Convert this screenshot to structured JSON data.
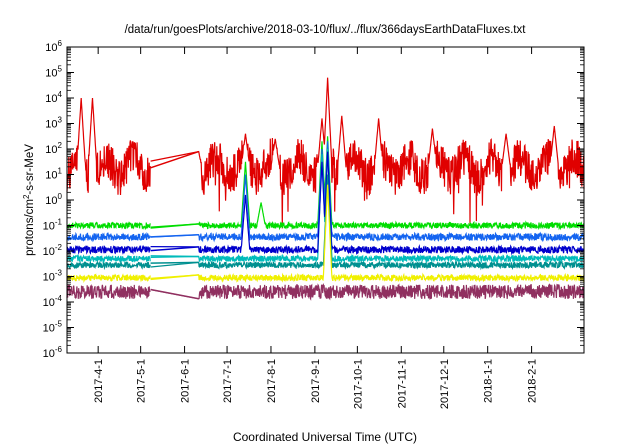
{
  "chart_data": {
    "type": "line",
    "title": "/data/run/goesPlots/archive/2018-03-10/flux/../flux/366daysEarthDataFluxes.txt",
    "xlabel": "Coordinated Universal Time (UTC)",
    "ylabel_main": "protons/cm",
    "ylabel_sup": "2",
    "ylabel_rest": "-s-sr-MeV",
    "yscale": "log",
    "ylim": [
      1e-06,
      1000000.0
    ],
    "xlim": [
      "2017-03-10",
      "2018-03-10"
    ],
    "grid": false,
    "y_ticks": [
      {
        "base": "10",
        "exp": "-6",
        "value": -6
      },
      {
        "base": "10",
        "exp": "-5",
        "value": -5
      },
      {
        "base": "10",
        "exp": "-4",
        "value": -4
      },
      {
        "base": "10",
        "exp": "-3",
        "value": -3
      },
      {
        "base": "10",
        "exp": "-2",
        "value": -2
      },
      {
        "base": "10",
        "exp": "-1",
        "value": -1
      },
      {
        "base": "10",
        "exp": "0",
        "value": 0
      },
      {
        "base": "10",
        "exp": "1",
        "value": 1
      },
      {
        "base": "10",
        "exp": "2",
        "value": 2
      },
      {
        "base": "10",
        "exp": "3",
        "value": 3
      },
      {
        "base": "10",
        "exp": "4",
        "value": 4
      },
      {
        "base": "10",
        "exp": "5",
        "value": 5
      },
      {
        "base": "10",
        "exp": "6",
        "value": 6
      }
    ],
    "x_ticks": [
      {
        "label": "2017-4-1",
        "date": "2017-04-01"
      },
      {
        "label": "2017-5-1",
        "date": "2017-05-01"
      },
      {
        "label": "2017-6-1",
        "date": "2017-06-01"
      },
      {
        "label": "2017-7-1",
        "date": "2017-07-01"
      },
      {
        "label": "2017-8-1",
        "date": "2017-08-01"
      },
      {
        "label": "2017-9-1",
        "date": "2017-09-01"
      },
      {
        "label": "2017-10-1",
        "date": "2017-10-01"
      },
      {
        "label": "2017-11-1",
        "date": "2017-11-01"
      },
      {
        "label": "2017-12-1",
        "date": "2017-12-01"
      },
      {
        "label": "2018-1-1",
        "date": "2018-01-01"
      },
      {
        "label": "2018-2-1",
        "date": "2018-02-01"
      }
    ],
    "data_gap": [
      "2017-05-08",
      "2017-06-11"
    ],
    "series": [
      {
        "color": "#e00000",
        "baseline": 1.3,
        "amp": 0.75,
        "points": [
          [
            "2017-03-20",
            4
          ],
          [
            "2017-03-28",
            4
          ],
          [
            "2017-05-18",
            2
          ],
          [
            "2017-06-10",
            2.2
          ],
          [
            "2017-07-14",
            2.6
          ],
          [
            "2017-08-04",
            2.4
          ],
          [
            "2017-09-06",
            3.2
          ],
          [
            "2017-09-10",
            4.8
          ],
          [
            "2017-09-20",
            3.3
          ],
          [
            "2017-10-16",
            3.2
          ],
          [
            "2017-11-23",
            2.8
          ],
          [
            "2018-01-14",
            2.6
          ],
          [
            "2018-02-17",
            2.9
          ]
        ]
      },
      {
        "color": "#00dd00",
        "baseline": -1.0,
        "amp": 0.12,
        "points": [
          [
            "2017-07-14",
            1.5
          ],
          [
            "2017-07-25",
            -0.1
          ],
          [
            "2017-09-06",
            2.3
          ],
          [
            "2017-09-10",
            2.5
          ]
        ]
      },
      {
        "color": "#1464f0",
        "baseline": -1.45,
        "amp": 0.14,
        "points": [
          [
            "2017-07-14",
            1.0
          ],
          [
            "2017-09-06",
            2.0
          ],
          [
            "2017-09-10",
            2.3
          ]
        ]
      },
      {
        "color": "#00bbbb",
        "baseline": -2.3,
        "amp": 0.12,
        "points": [
          [
            "2017-09-06",
            1.8
          ],
          [
            "2017-09-10",
            2.0
          ]
        ]
      },
      {
        "color": "#0000cc",
        "baseline": -1.95,
        "amp": 0.14,
        "points": [
          [
            "2017-07-14",
            0.2
          ],
          [
            "2017-09-06",
            1.5
          ],
          [
            "2017-09-10",
            1.9
          ]
        ]
      },
      {
        "color": "#009090",
        "baseline": -2.55,
        "amp": 0.12,
        "points": [
          [
            "2017-09-10",
            1.0
          ]
        ]
      },
      {
        "color": "#f0f000",
        "baseline": -3.05,
        "amp": 0.12,
        "points": [
          [
            "2017-09-10",
            0.6
          ]
        ]
      },
      {
        "color": "#903060",
        "baseline": -3.6,
        "amp": 0.28,
        "points": []
      }
    ]
  }
}
